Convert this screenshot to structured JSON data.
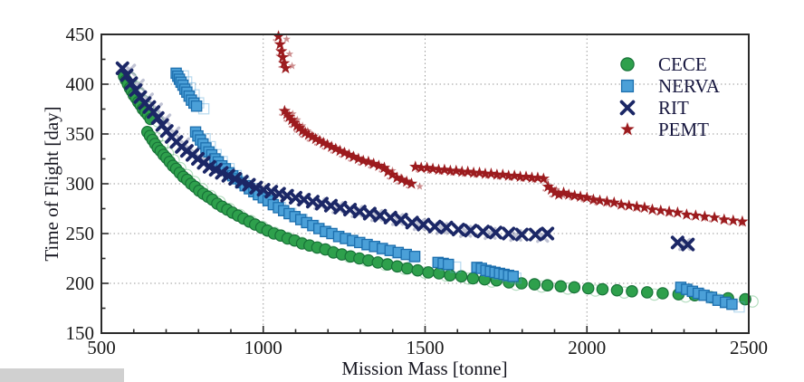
{
  "chart_data": {
    "type": "scatter",
    "title": "",
    "xlabel": "Mission Mass [tonne]",
    "ylabel": "Time of Flight [day]",
    "xlim": [
      500,
      2500
    ],
    "ylim": [
      150,
      450
    ],
    "x_ticks": [
      500,
      1000,
      1500,
      2000,
      2500
    ],
    "y_ticks": [
      150,
      200,
      250,
      300,
      350,
      400,
      450
    ],
    "x_minor_step": 100,
    "y_minor_step": 25,
    "grid": "dotted",
    "legend_position": "upper right",
    "series": [
      {
        "name": "CECE",
        "marker": "circle",
        "color": "#2ea04c",
        "edge": "#187238",
        "points": [
          [
            570,
            408
          ],
          [
            576,
            404
          ],
          [
            582,
            400
          ],
          [
            588,
            396
          ],
          [
            594,
            393
          ],
          [
            600,
            389
          ],
          [
            607,
            386
          ],
          [
            614,
            382
          ],
          [
            621,
            379
          ],
          [
            628,
            375
          ],
          [
            636,
            372
          ],
          [
            644,
            369
          ],
          [
            652,
            365
          ],
          [
            642,
            352
          ],
          [
            650,
            348
          ],
          [
            658,
            344
          ],
          [
            666,
            340
          ],
          [
            674,
            336
          ],
          [
            683,
            333
          ],
          [
            692,
            329
          ],
          [
            701,
            326
          ],
          [
            711,
            322
          ],
          [
            721,
            318
          ],
          [
            731,
            315
          ],
          [
            742,
            311
          ],
          [
            753,
            307
          ],
          [
            765,
            304
          ],
          [
            777,
            300
          ],
          [
            789,
            297
          ],
          [
            802,
            293
          ],
          [
            815,
            290
          ],
          [
            829,
            287
          ],
          [
            843,
            284
          ],
          [
            858,
            280
          ],
          [
            873,
            277
          ],
          [
            889,
            274
          ],
          [
            905,
            271
          ],
          [
            922,
            268
          ],
          [
            939,
            265
          ],
          [
            957,
            262
          ],
          [
            975,
            259
          ],
          [
            994,
            256
          ],
          [
            1013,
            253
          ],
          [
            1033,
            250
          ],
          [
            1054,
            248
          ],
          [
            1075,
            245
          ],
          [
            1097,
            243
          ],
          [
            1120,
            240
          ],
          [
            1143,
            238
          ],
          [
            1167,
            236
          ],
          [
            1192,
            234
          ],
          [
            1217,
            231
          ],
          [
            1243,
            229
          ],
          [
            1270,
            227
          ],
          [
            1297,
            225
          ],
          [
            1325,
            223
          ],
          [
            1354,
            221
          ],
          [
            1384,
            219
          ],
          [
            1414,
            217
          ],
          [
            1445,
            215
          ],
          [
            1477,
            213
          ],
          [
            1510,
            211
          ],
          [
            1543,
            210
          ],
          [
            1577,
            208
          ],
          [
            1612,
            207
          ],
          [
            1648,
            205
          ],
          [
            1684,
            204
          ],
          [
            1721,
            203
          ],
          [
            1759,
            201
          ],
          [
            1798,
            200
          ],
          [
            1838,
            199
          ],
          [
            1878,
            198
          ],
          [
            1919,
            197
          ],
          [
            1961,
            196
          ],
          [
            2004,
            195
          ],
          [
            2048,
            194
          ],
          [
            2093,
            193
          ],
          [
            2139,
            192
          ],
          [
            2186,
            191
          ],
          [
            2234,
            190
          ],
          [
            2283,
            189
          ],
          [
            2333,
            188
          ],
          [
            2384,
            186
          ],
          [
            2436,
            185
          ],
          [
            2489,
            184
          ]
        ]
      },
      {
        "name": "NERVA",
        "marker": "square",
        "color": "#4ba0d8",
        "edge": "#1d6fae",
        "points": [
          [
            731,
            411
          ],
          [
            736,
            408
          ],
          [
            741,
            405
          ],
          [
            746,
            402
          ],
          [
            752,
            399
          ],
          [
            758,
            395
          ],
          [
            764,
            392
          ],
          [
            771,
            388
          ],
          [
            778,
            384
          ],
          [
            786,
            381
          ],
          [
            794,
            378
          ],
          [
            791,
            352
          ],
          [
            798,
            348
          ],
          [
            806,
            344
          ],
          [
            814,
            340
          ],
          [
            823,
            336
          ],
          [
            832,
            332
          ],
          [
            841,
            329
          ],
          [
            851,
            325
          ],
          [
            861,
            322
          ],
          [
            872,
            318
          ],
          [
            883,
            315
          ],
          [
            894,
            311
          ],
          [
            906,
            308
          ],
          [
            918,
            305
          ],
          [
            931,
            301
          ],
          [
            944,
            298
          ],
          [
            957,
            295
          ],
          [
            971,
            292
          ],
          [
            985,
            289
          ],
          [
            1000,
            286
          ],
          [
            1015,
            283
          ],
          [
            1031,
            279
          ],
          [
            1047,
            276
          ],
          [
            1063,
            273
          ],
          [
            1080,
            270
          ],
          [
            1098,
            267
          ],
          [
            1116,
            264
          ],
          [
            1134,
            261
          ],
          [
            1153,
            258
          ],
          [
            1172,
            255
          ],
          [
            1192,
            252
          ],
          [
            1212,
            250
          ],
          [
            1233,
            247
          ],
          [
            1254,
            245
          ],
          [
            1276,
            243
          ],
          [
            1298,
            241
          ],
          [
            1321,
            239
          ],
          [
            1344,
            237
          ],
          [
            1368,
            235
          ],
          [
            1392,
            233
          ],
          [
            1417,
            231
          ],
          [
            1442,
            229
          ],
          [
            1468,
            227
          ],
          [
            1540,
            221
          ],
          [
            1556,
            220
          ],
          [
            1572,
            219
          ],
          [
            1660,
            216
          ],
          [
            1674,
            215
          ],
          [
            1688,
            213
          ],
          [
            1702,
            212
          ],
          [
            1716,
            211
          ],
          [
            1730,
            210
          ],
          [
            1744,
            209
          ],
          [
            1758,
            208
          ],
          [
            1772,
            207
          ],
          [
            2290,
            196
          ],
          [
            2308,
            194
          ],
          [
            2326,
            192
          ],
          [
            2344,
            190
          ],
          [
            2362,
            188
          ],
          [
            2385,
            186
          ],
          [
            2405,
            183
          ],
          [
            2428,
            181
          ],
          [
            2448,
            179
          ]
        ]
      },
      {
        "name": "RIT",
        "marker": "x",
        "color": "#1b2766",
        "edge": "#1b2766",
        "points": [
          [
            565,
            416
          ],
          [
            578,
            409
          ],
          [
            592,
            401
          ],
          [
            606,
            394
          ],
          [
            620,
            387
          ],
          [
            634,
            381
          ],
          [
            648,
            377
          ],
          [
            661,
            372
          ],
          [
            674,
            366
          ],
          [
            688,
            359
          ],
          [
            702,
            353
          ],
          [
            717,
            347
          ],
          [
            732,
            342
          ],
          [
            748,
            337
          ],
          [
            764,
            333
          ],
          [
            781,
            329
          ],
          [
            798,
            325
          ],
          [
            816,
            321
          ],
          [
            834,
            317
          ],
          [
            853,
            314
          ],
          [
            872,
            311
          ],
          [
            892,
            308
          ],
          [
            913,
            305
          ],
          [
            934,
            302
          ],
          [
            956,
            299
          ],
          [
            978,
            296
          ],
          [
            1001,
            294
          ],
          [
            1025,
            292
          ],
          [
            1049,
            290
          ],
          [
            1074,
            288
          ],
          [
            1100,
            286
          ],
          [
            1126,
            284
          ],
          [
            1153,
            282
          ],
          [
            1181,
            280
          ],
          [
            1209,
            278
          ],
          [
            1238,
            276
          ],
          [
            1268,
            274
          ],
          [
            1298,
            272
          ],
          [
            1329,
            270
          ],
          [
            1361,
            268
          ],
          [
            1393,
            266
          ],
          [
            1426,
            264
          ],
          [
            1460,
            261
          ],
          [
            1495,
            259
          ],
          [
            1530,
            257
          ],
          [
            1566,
            256
          ],
          [
            1603,
            254
          ],
          [
            1641,
            253
          ],
          [
            1679,
            252
          ],
          [
            1718,
            251
          ],
          [
            1758,
            250
          ],
          [
            1799,
            249
          ],
          [
            1841,
            249
          ],
          [
            1878,
            250
          ],
          [
            2280,
            241
          ],
          [
            2312,
            239
          ]
        ]
      },
      {
        "name": "PEMT",
        "marker": "star",
        "color": "#9c1b1e",
        "edge": "#7a1215",
        "points": [
          [
            1047,
            448
          ],
          [
            1052,
            440
          ],
          [
            1056,
            433
          ],
          [
            1060,
            427
          ],
          [
            1064,
            421
          ],
          [
            1069,
            416
          ],
          [
            1066,
            373
          ],
          [
            1073,
            370
          ],
          [
            1080,
            367
          ],
          [
            1088,
            364
          ],
          [
            1096,
            361
          ],
          [
            1104,
            358
          ],
          [
            1112,
            356
          ],
          [
            1121,
            353
          ],
          [
            1130,
            351
          ],
          [
            1140,
            349
          ],
          [
            1151,
            347
          ],
          [
            1162,
            345
          ],
          [
            1174,
            343
          ],
          [
            1186,
            341
          ],
          [
            1198,
            339
          ],
          [
            1211,
            337
          ],
          [
            1224,
            335
          ],
          [
            1237,
            333
          ],
          [
            1251,
            331
          ],
          [
            1265,
            329
          ],
          [
            1279,
            327
          ],
          [
            1294,
            325
          ],
          [
            1309,
            323
          ],
          [
            1325,
            322
          ],
          [
            1341,
            320
          ],
          [
            1357,
            318
          ],
          [
            1374,
            316
          ],
          [
            1385,
            312
          ],
          [
            1399,
            309
          ],
          [
            1413,
            306
          ],
          [
            1428,
            304
          ],
          [
            1443,
            302
          ],
          [
            1458,
            300
          ],
          [
            1470,
            317
          ],
          [
            1488,
            316
          ],
          [
            1506,
            316
          ],
          [
            1524,
            315
          ],
          [
            1542,
            314
          ],
          [
            1560,
            314
          ],
          [
            1578,
            313
          ],
          [
            1596,
            313
          ],
          [
            1614,
            312
          ],
          [
            1632,
            312
          ],
          [
            1650,
            311
          ],
          [
            1668,
            311
          ],
          [
            1686,
            310
          ],
          [
            1704,
            310
          ],
          [
            1722,
            309
          ],
          [
            1740,
            309
          ],
          [
            1758,
            308
          ],
          [
            1776,
            308
          ],
          [
            1794,
            307
          ],
          [
            1812,
            307
          ],
          [
            1830,
            306
          ],
          [
            1848,
            306
          ],
          [
            1866,
            305
          ],
          [
            1880,
            297
          ],
          [
            1890,
            294
          ],
          [
            1901,
            291
          ],
          [
            1913,
            289
          ],
          [
            1928,
            291
          ],
          [
            1944,
            289
          ],
          [
            1962,
            288
          ],
          [
            1980,
            287
          ],
          [
            2000,
            286
          ],
          [
            2020,
            284
          ],
          [
            2040,
            283
          ],
          [
            2062,
            282
          ],
          [
            2084,
            281
          ],
          [
            2106,
            279
          ],
          [
            2130,
            278
          ],
          [
            2154,
            277
          ],
          [
            2178,
            276
          ],
          [
            2202,
            274
          ],
          [
            2228,
            273
          ],
          [
            2254,
            272
          ],
          [
            2280,
            271
          ],
          [
            2308,
            269
          ],
          [
            2336,
            268
          ],
          [
            2364,
            267
          ],
          [
            2394,
            266
          ],
          [
            2424,
            264
          ],
          [
            2452,
            263
          ],
          [
            2480,
            262
          ]
        ]
      }
    ]
  }
}
